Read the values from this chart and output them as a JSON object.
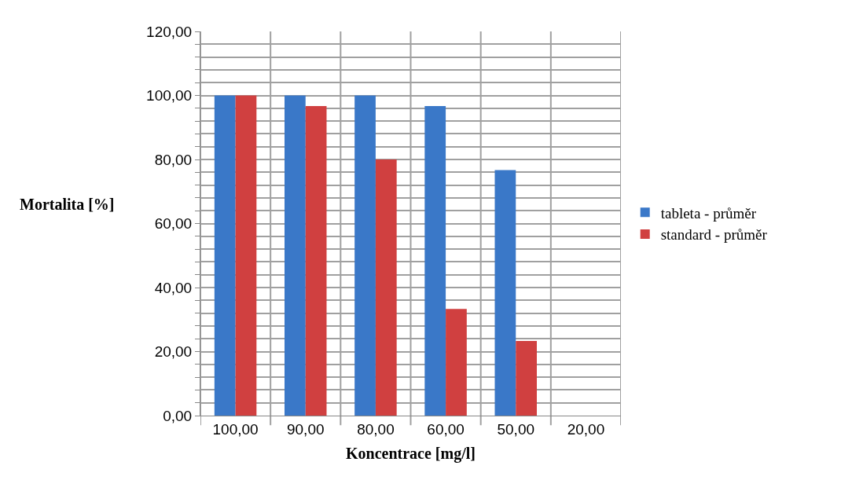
{
  "chart_data": {
    "type": "bar",
    "xlabel": "Koncentrace [mg/l]",
    "ylabel": "Mortalita [%]",
    "categories": [
      "100,00",
      "90,00",
      "80,00",
      "60,00",
      "50,00",
      "20,00"
    ],
    "series": [
      {
        "name": "tableta - průměr",
        "color": "#3a78c8",
        "values": [
          100,
          100,
          100,
          96.7,
          76.7,
          0
        ]
      },
      {
        "name": "standard - průměr",
        "color": "#d04040",
        "values": [
          100,
          96.7,
          80,
          33.3,
          23.3,
          0
        ]
      }
    ],
    "ylim": [
      0,
      120
    ],
    "yticks": [
      {
        "value": 0,
        "label": "0,00"
      },
      {
        "value": 4,
        "label": null
      },
      {
        "value": 8,
        "label": null
      },
      {
        "value": 12,
        "label": null
      },
      {
        "value": 16,
        "label": null
      },
      {
        "value": 20,
        "label": "20,00"
      },
      {
        "value": 24,
        "label": null
      },
      {
        "value": 28,
        "label": null
      },
      {
        "value": 32,
        "label": null
      },
      {
        "value": 36,
        "label": null
      },
      {
        "value": 40,
        "label": "40,00"
      },
      {
        "value": 44,
        "label": null
      },
      {
        "value": 48,
        "label": null
      },
      {
        "value": 52,
        "label": null
      },
      {
        "value": 56,
        "label": null
      },
      {
        "value": 60,
        "label": "60,00"
      },
      {
        "value": 64,
        "label": null
      },
      {
        "value": 68,
        "label": null
      },
      {
        "value": 72,
        "label": null
      },
      {
        "value": 76,
        "label": null
      },
      {
        "value": 80,
        "label": "80,00"
      },
      {
        "value": 84,
        "label": null
      },
      {
        "value": 88,
        "label": null
      },
      {
        "value": 92,
        "label": null
      },
      {
        "value": 96,
        "label": null
      },
      {
        "value": 100,
        "label": "100,00"
      },
      {
        "value": 104,
        "label": null
      },
      {
        "value": 108,
        "label": null
      },
      {
        "value": 112,
        "label": null
      },
      {
        "value": 116,
        "label": null
      },
      {
        "value": 120,
        "label": "120,00"
      }
    ],
    "grid": true,
    "legend": "right"
  }
}
